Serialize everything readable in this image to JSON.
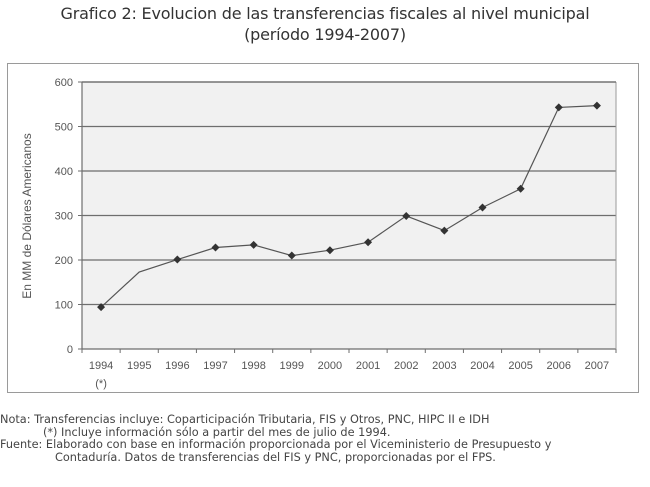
{
  "header": {
    "title_line1": "Grafico 2: Evolucion de las transferencias fiscales al nivel municipal",
    "title_line2": "(período 1994-2007)"
  },
  "chart_data": {
    "type": "line",
    "title": "Grafico 2: Evolucion de las transferencias fiscales al nivel municipal (período 1994-2007)",
    "xlabel": "",
    "ylabel": "En MM de Dólares Americanos",
    "ylim": [
      0,
      600
    ],
    "yticks": [
      0,
      100,
      200,
      300,
      400,
      500,
      600
    ],
    "grid": true,
    "legend": "none",
    "categories": [
      "1994",
      "1995",
      "1996",
      "1997",
      "1998",
      "1999",
      "2000",
      "2001",
      "2002",
      "2003",
      "2004",
      "2005",
      "2006",
      "2007"
    ],
    "category_annotations": {
      "1994": "(*)"
    },
    "series": [
      {
        "name": "Transferencias",
        "values": [
          94,
          173,
          201,
          228,
          234,
          210,
          222,
          240,
          299,
          266,
          318,
          360,
          543,
          547
        ],
        "markers": [
          true,
          false,
          true,
          true,
          true,
          true,
          true,
          true,
          true,
          true,
          true,
          true,
          true,
          true
        ],
        "color": "#555555",
        "marker_color": "#333333"
      }
    ],
    "colors": {
      "plot_background": "#f1f1f1",
      "gridline": "#6e6e6e",
      "axis": "#6e6e6e",
      "frame": "#9a9a9a",
      "tick_label": "#555555"
    }
  },
  "notes": {
    "nota": "Nota: Transferencias incluye: Coparticipación Tributaria, FIS y Otros, PNC, HIPC II e IDH",
    "asterisk": "(*) Incluye información sólo a partir del mes de julio de 1994.",
    "fuente_line1": "Fuente: Elaborado con base en información proporcionada por el Viceministerio de Presupuesto y",
    "fuente_line2": "Contaduría. Datos de transferencias del FIS y PNC, proporcionadas por el FPS."
  }
}
